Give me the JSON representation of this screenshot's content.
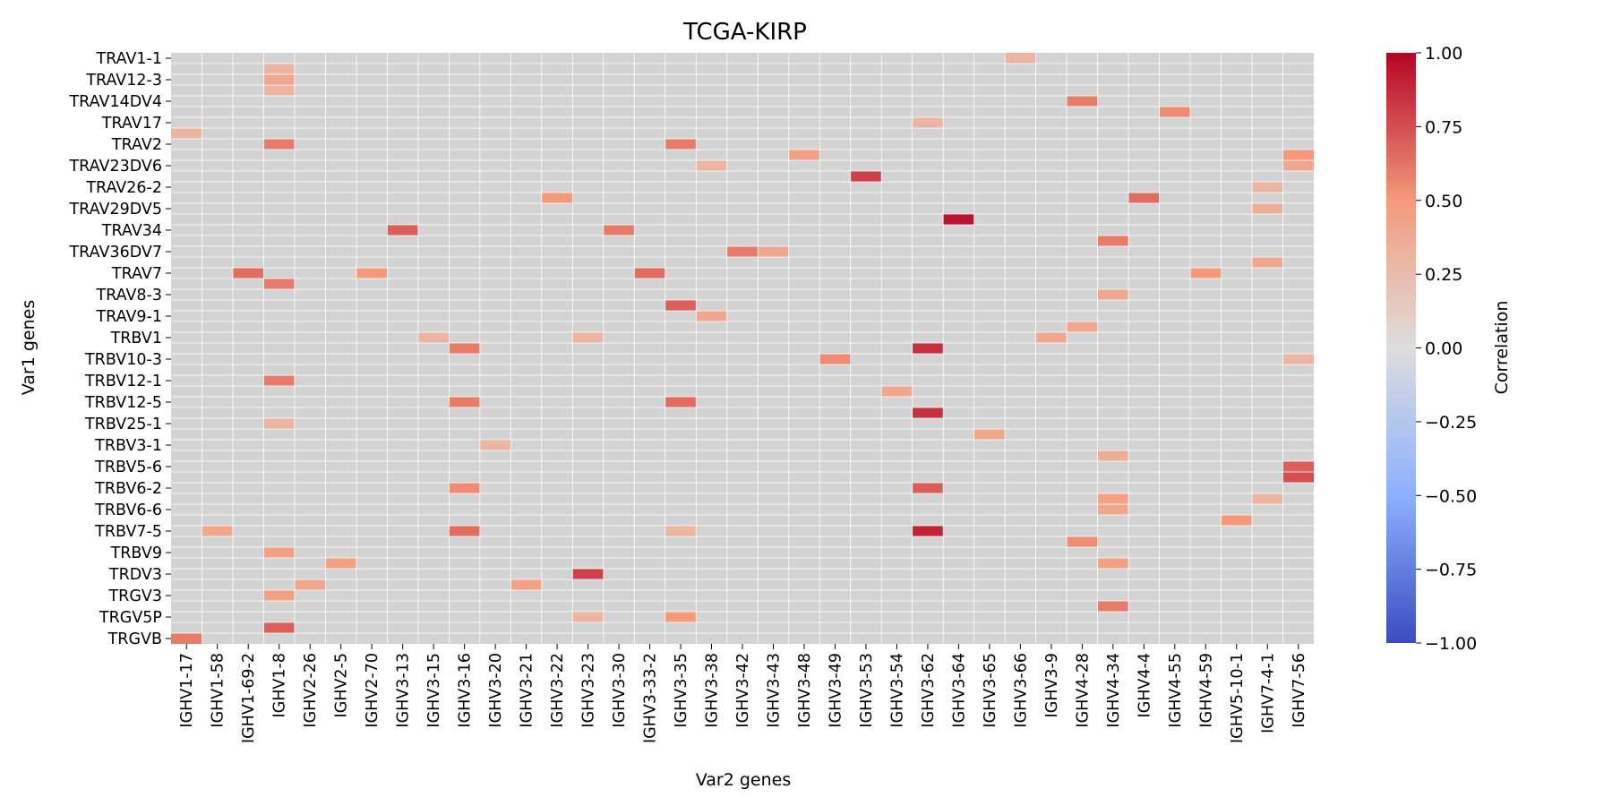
{
  "chart_data": {
    "type": "heatmap",
    "title": "TCGA-KIRP",
    "xlabel": "Var2 genes",
    "ylabel": "Var1 genes",
    "x_categories": [
      "IGHV1-17",
      "IGHV1-58",
      "IGHV1-69-2",
      "IGHV1-8",
      "IGHV2-26",
      "IGHV2-5",
      "IGHV2-70",
      "IGHV3-13",
      "IGHV3-15",
      "IGHV3-16",
      "IGHV3-20",
      "IGHV3-21",
      "IGHV3-22",
      "IGHV3-23",
      "IGHV3-30",
      "IGHV3-33-2",
      "IGHV3-35",
      "IGHV3-38",
      "IGHV3-42",
      "IGHV3-43",
      "IGHV3-48",
      "IGHV3-49",
      "IGHV3-53",
      "IGHV3-54",
      "IGHV3-62",
      "IGHV3-64",
      "IGHV3-65",
      "IGHV3-66",
      "IGHV3-9",
      "IGHV4-28",
      "IGHV4-34",
      "IGHV4-4",
      "IGHV4-55",
      "IGHV4-59",
      "IGHV5-10-1",
      "IGHV7-4-1",
      "IGHV7-56"
    ],
    "y_categories": [
      "TRAV1-1",
      "TRAV12-3",
      "TRAV14DV4",
      "TRAV17",
      "TRAV2",
      "TRAV23DV6",
      "TRAV26-2",
      "TRAV29DV5",
      "TRAV34",
      "TRAV36DV7",
      "TRAV7",
      "TRAV8-3",
      "TRAV9-1",
      "TRBV1",
      "TRBV10-3",
      "TRBV12-1",
      "TRBV12-5",
      "TRBV25-1",
      "TRBV3-1",
      "TRBV5-6",
      "TRBV6-2",
      "TRBV6-6",
      "TRBV7-5",
      "TRBV9",
      "TRDV3",
      "TRGV3",
      "TRGV5P",
      "TRGVB"
    ],
    "y_labels_shown": [
      "TRAV1-1",
      "TRAV12-3",
      "TRAV14DV4",
      "TRAV17",
      "TRAV2",
      "TRAV23DV6",
      "TRAV26-2",
      "TRAV29DV5",
      "TRAV34",
      "TRAV36DV7",
      "TRAV7",
      "TRAV8-3",
      "TRAV9-1",
      "TRBV1",
      "TRBV10-3",
      "TRBV12-1",
      "TRBV12-5",
      "TRBV25-1",
      "TRBV3-1",
      "TRBV5-6",
      "TRBV6-2",
      "TRBV6-6",
      "TRBV7-5",
      "TRBV9",
      "TRDV3",
      "TRGV3",
      "TRGV5P",
      "TRGVB"
    ],
    "n_rows": 55,
    "row_label_step": 2,
    "cells": [
      [
        0,
        27,
        0.3
      ],
      [
        1,
        3,
        0.3
      ],
      [
        2,
        3,
        0.4
      ],
      [
        3,
        3,
        0.3
      ],
      [
        4,
        29,
        0.6
      ],
      [
        5,
        32,
        0.55
      ],
      [
        6,
        24,
        0.3
      ],
      [
        7,
        0,
        0.3
      ],
      [
        8,
        3,
        0.6
      ],
      [
        8,
        16,
        0.6
      ],
      [
        9,
        20,
        0.45
      ],
      [
        9,
        36,
        0.5
      ],
      [
        10,
        17,
        0.3
      ],
      [
        10,
        36,
        0.4
      ],
      [
        11,
        22,
        0.8
      ],
      [
        12,
        35,
        0.3
      ],
      [
        13,
        12,
        0.5
      ],
      [
        13,
        31,
        0.65
      ],
      [
        14,
        35,
        0.35
      ],
      [
        15,
        25,
        0.95
      ],
      [
        16,
        7,
        0.7
      ],
      [
        16,
        14,
        0.6
      ],
      [
        17,
        30,
        0.6
      ],
      [
        18,
        18,
        0.6
      ],
      [
        18,
        19,
        0.4
      ],
      [
        19,
        35,
        0.4
      ],
      [
        20,
        2,
        0.65
      ],
      [
        20,
        6,
        0.5
      ],
      [
        20,
        15,
        0.65
      ],
      [
        20,
        33,
        0.5
      ],
      [
        21,
        3,
        0.6
      ],
      [
        22,
        30,
        0.4
      ],
      [
        23,
        16,
        0.7
      ],
      [
        24,
        17,
        0.4
      ],
      [
        25,
        29,
        0.4
      ],
      [
        26,
        8,
        0.3
      ],
      [
        26,
        13,
        0.3
      ],
      [
        26,
        28,
        0.4
      ],
      [
        27,
        9,
        0.6
      ],
      [
        27,
        24,
        0.85
      ],
      [
        28,
        21,
        0.55
      ],
      [
        28,
        36,
        0.3
      ],
      [
        30,
        3,
        0.6
      ],
      [
        31,
        23,
        0.4
      ],
      [
        32,
        9,
        0.6
      ],
      [
        32,
        16,
        0.65
      ],
      [
        33,
        24,
        0.85
      ],
      [
        34,
        3,
        0.3
      ],
      [
        35,
        26,
        0.4
      ],
      [
        36,
        10,
        0.3
      ],
      [
        37,
        30,
        0.35
      ],
      [
        38,
        36,
        0.7
      ],
      [
        39,
        36,
        0.75
      ],
      [
        40,
        9,
        0.55
      ],
      [
        40,
        24,
        0.7
      ],
      [
        41,
        30,
        0.45
      ],
      [
        41,
        35,
        0.3
      ],
      [
        42,
        30,
        0.4
      ],
      [
        43,
        34,
        0.5
      ],
      [
        44,
        1,
        0.4
      ],
      [
        44,
        9,
        0.65
      ],
      [
        44,
        16,
        0.3
      ],
      [
        44,
        24,
        0.9
      ],
      [
        45,
        29,
        0.55
      ],
      [
        46,
        3,
        0.45
      ],
      [
        47,
        5,
        0.45
      ],
      [
        47,
        30,
        0.45
      ],
      [
        48,
        13,
        0.8
      ],
      [
        49,
        4,
        0.4
      ],
      [
        49,
        11,
        0.45
      ],
      [
        50,
        3,
        0.45
      ],
      [
        51,
        30,
        0.6
      ],
      [
        52,
        13,
        0.3
      ],
      [
        52,
        16,
        0.5
      ],
      [
        53,
        3,
        0.7
      ],
      [
        54,
        0,
        0.6
      ]
    ],
    "colorbar": {
      "label": "Correlation",
      "vmin": -1.0,
      "vmax": 1.0,
      "ticks": [
        "1.00",
        "0.75",
        "0.50",
        "0.25",
        "0.00",
        "−0.25",
        "−0.50",
        "−0.75",
        "−1.00"
      ],
      "colormap": "coolwarm"
    },
    "missing_color": "#d3d3d3",
    "grid": true
  }
}
